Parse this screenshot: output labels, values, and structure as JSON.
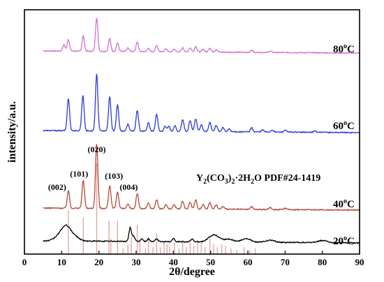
{
  "chart_data": {
    "type": "line",
    "xlabel": "2θ/degree",
    "ylabel": "intensity/a.u.",
    "xlim": [
      0,
      90
    ],
    "xticks": [
      0,
      10,
      20,
      30,
      40,
      50,
      60,
      70,
      80,
      90
    ],
    "yaxis_ticks": false,
    "grid": false,
    "series": [
      {
        "name": "80°C",
        "temperature": "80",
        "color": "#d070d0",
        "baseline": 73,
        "peaks": [
          [
            10.6,
            9
          ],
          [
            11.8,
            17
          ],
          [
            15.8,
            22
          ],
          [
            19.4,
            48
          ],
          [
            22.9,
            18
          ],
          [
            25.0,
            12
          ],
          [
            27.8,
            5
          ],
          [
            30.3,
            14
          ],
          [
            33.3,
            5
          ],
          [
            35.5,
            9
          ],
          [
            38.0,
            4
          ],
          [
            40.2,
            4
          ],
          [
            42.5,
            6
          ],
          [
            44.5,
            6
          ],
          [
            46.0,
            8
          ],
          [
            48.0,
            4
          ],
          [
            49.8,
            6
          ],
          [
            51.5,
            4
          ],
          [
            61.0,
            3
          ],
          [
            66.0,
            2
          ]
        ]
      },
      {
        "name": "60°C",
        "temperature": "60",
        "color": "#2a3ad8",
        "baseline": 187,
        "peaks": [
          [
            11.8,
            46
          ],
          [
            15.7,
            51
          ],
          [
            19.4,
            81
          ],
          [
            22.9,
            49
          ],
          [
            25.0,
            38
          ],
          [
            27.8,
            10
          ],
          [
            30.3,
            30
          ],
          [
            33.3,
            12
          ],
          [
            35.5,
            24
          ],
          [
            37.8,
            8
          ],
          [
            38.8,
            7
          ],
          [
            40.4,
            8
          ],
          [
            42.5,
            17
          ],
          [
            44.5,
            16
          ],
          [
            46.0,
            18
          ],
          [
            47.5,
            10
          ],
          [
            49.8,
            14
          ],
          [
            51.5,
            9
          ],
          [
            53.3,
            6
          ],
          [
            55.0,
            4
          ],
          [
            61.0,
            6
          ],
          [
            64.0,
            3
          ],
          [
            66.5,
            3
          ],
          [
            70.0,
            3
          ],
          [
            78.0,
            2
          ]
        ]
      },
      {
        "name": "40°C",
        "temperature": "40",
        "color": "#b84838",
        "baseline": 298,
        "peaks": [
          [
            11.8,
            25
          ],
          [
            15.8,
            40
          ],
          [
            19.4,
            92
          ],
          [
            22.9,
            33
          ],
          [
            25.0,
            24
          ],
          [
            27.8,
            6
          ],
          [
            30.3,
            22
          ],
          [
            33.3,
            8
          ],
          [
            35.5,
            13
          ],
          [
            38.0,
            6
          ],
          [
            40.2,
            6
          ],
          [
            42.5,
            11
          ],
          [
            44.5,
            10
          ],
          [
            46.0,
            13
          ],
          [
            48.0,
            7
          ],
          [
            49.8,
            10
          ],
          [
            51.5,
            6
          ],
          [
            53.3,
            4
          ],
          [
            61.0,
            4
          ],
          [
            66.0,
            3
          ],
          [
            70.0,
            2
          ]
        ]
      },
      {
        "name": "20°C",
        "temperature": "20",
        "color": "#000000",
        "baseline": 345,
        "peaks": [
          [
            11.2,
            20
          ],
          [
            9.2,
            6
          ],
          [
            13.5,
            6
          ],
          [
            28.4,
            20
          ],
          [
            29.3,
            8
          ],
          [
            31.5,
            4
          ],
          [
            33.3,
            4
          ],
          [
            35.5,
            4
          ],
          [
            40.0,
            5
          ],
          [
            45.0,
            4
          ],
          [
            50.5,
            8
          ],
          [
            52.0,
            4
          ],
          [
            55.0,
            4
          ],
          [
            59.5,
            5
          ],
          [
            66.0,
            3
          ],
          [
            80.0,
            3
          ]
        ]
      }
    ],
    "reference": {
      "label": "PDF#24-1419",
      "color": "#e0a8a0",
      "lines": [
        [
          11.8,
          62
        ],
        [
          15.8,
          52
        ],
        [
          19.4,
          130
        ],
        [
          22.7,
          48
        ],
        [
          23.2,
          22
        ],
        [
          25.0,
          48
        ],
        [
          26.5,
          8
        ],
        [
          27.8,
          14
        ],
        [
          28.7,
          25
        ],
        [
          30.3,
          42
        ],
        [
          31.0,
          18
        ],
        [
          32.5,
          8
        ],
        [
          33.3,
          22
        ],
        [
          34.5,
          10
        ],
        [
          35.5,
          30
        ],
        [
          36.5,
          10
        ],
        [
          37.5,
          18
        ],
        [
          38.3,
          14
        ],
        [
          39.0,
          10
        ],
        [
          40.3,
          16
        ],
        [
          41.5,
          8
        ],
        [
          42.5,
          20
        ],
        [
          43.5,
          10
        ],
        [
          44.5,
          18
        ],
        [
          45.5,
          12
        ],
        [
          46.5,
          20
        ],
        [
          47.5,
          16
        ],
        [
          48.5,
          10
        ],
        [
          49.8,
          24
        ],
        [
          50.8,
          14
        ],
        [
          51.8,
          10
        ],
        [
          53.0,
          14
        ],
        [
          54.0,
          12
        ],
        [
          55.5,
          8
        ],
        [
          57.0,
          6
        ],
        [
          59.0,
          10
        ],
        [
          60.5,
          6
        ],
        [
          62.0,
          8
        ]
      ]
    },
    "annotations": [
      {
        "text": "(002)",
        "x": 11.8
      },
      {
        "text": "(101)",
        "x": 15.8
      },
      {
        "text": "(020)",
        "x": 19.4
      },
      {
        "text": "(103)",
        "x": 22.9
      },
      {
        "text": "(004)",
        "x": 25.0
      }
    ],
    "compound_label": {
      "y_main": "Y",
      "sub1": "2",
      "co3": "(CO",
      "sub2": "3",
      "close": ")",
      "sub3": "2",
      "rest": "·2H",
      "sub4": "2",
      "tail": "O PDF#24-1419"
    },
    "temp_unit": "C",
    "temp_sup": "o"
  }
}
